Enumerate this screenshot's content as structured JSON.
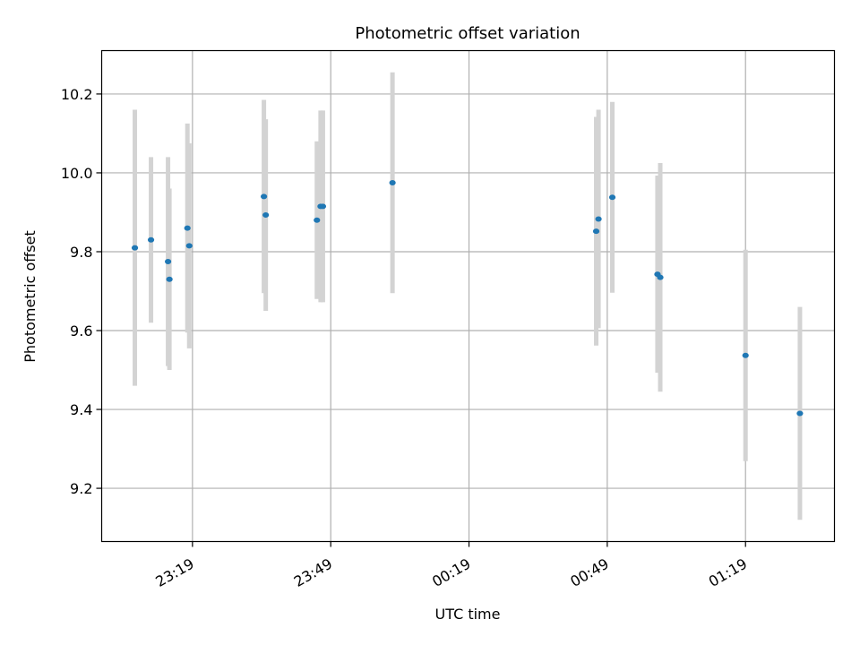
{
  "chart_data": {
    "type": "scatter",
    "title": "Photometric offset variation",
    "xlabel": "UTC time",
    "ylabel": "Photometric offset",
    "x_tick_labels": [
      "23:19",
      "23:49",
      "00:19",
      "00:49",
      "01:19"
    ],
    "x_tick_minutes": [
      1399,
      1429,
      1459,
      1489,
      1519
    ],
    "xlim_minutes": [
      1379.3,
      1538.3
    ],
    "ylim": [
      9.065,
      10.31
    ],
    "y_ticks": [
      9.2,
      9.4,
      9.6,
      9.8,
      10.0,
      10.2
    ],
    "y_tick_labels": [
      "9.2",
      "9.4",
      "9.6",
      "9.8",
      "10.0",
      "10.2"
    ],
    "grid": true,
    "marker_color": "#1f77b4",
    "errorbar_color": "#d3d3d3",
    "points": [
      {
        "t": 1386.5,
        "y": 9.81,
        "err": 0.35
      },
      {
        "t": 1390.0,
        "y": 9.83,
        "err": 0.21
      },
      {
        "t": 1393.7,
        "y": 9.775,
        "err": 0.265
      },
      {
        "t": 1394.0,
        "y": 9.73,
        "err": 0.23
      },
      {
        "t": 1397.9,
        "y": 9.86,
        "err": 0.265
      },
      {
        "t": 1398.3,
        "y": 9.815,
        "err": 0.26
      },
      {
        "t": 1414.5,
        "y": 9.94,
        "err": 0.245
      },
      {
        "t": 1414.9,
        "y": 9.893,
        "err": 0.243
      },
      {
        "t": 1426.0,
        "y": 9.88,
        "err": 0.2
      },
      {
        "t": 1426.8,
        "y": 9.915,
        "err": 0.243
      },
      {
        "t": 1427.3,
        "y": 9.915,
        "err": 0.243
      },
      {
        "t": 1442.4,
        "y": 9.975,
        "err": 0.28
      },
      {
        "t": 1486.6,
        "y": 9.852,
        "err": 0.29
      },
      {
        "t": 1487.1,
        "y": 9.883,
        "err": 0.277
      },
      {
        "t": 1490.1,
        "y": 9.938,
        "err": 0.242
      },
      {
        "t": 1499.9,
        "y": 9.743,
        "err": 0.25
      },
      {
        "t": 1500.5,
        "y": 9.735,
        "err": 0.29
      },
      {
        "t": 1519.0,
        "y": 9.537,
        "err": 0.268
      },
      {
        "t": 1530.8,
        "y": 9.39,
        "err": 0.27
      }
    ]
  }
}
